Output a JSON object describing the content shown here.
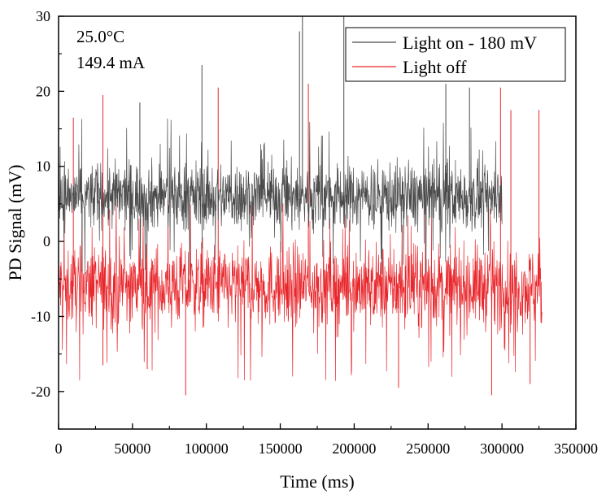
{
  "chart_data": {
    "type": "line",
    "title": "",
    "xlabel": "Time (ms)",
    "ylabel": "PD Signal (mV)",
    "xlim": [
      0,
      350000
    ],
    "ylim": [
      -25,
      30
    ],
    "xticks": [
      0,
      50000,
      100000,
      150000,
      200000,
      250000,
      300000,
      350000
    ],
    "xtick_labels": [
      "0",
      "50000",
      "100000",
      "150000",
      "200000",
      "250000",
      "300000",
      "350000"
    ],
    "yticks": [
      -20,
      -10,
      0,
      10,
      20,
      30
    ],
    "ytick_labels": [
      "-20",
      "-10",
      "0",
      "10",
      "20",
      "30"
    ],
    "grid": false,
    "legend_position": "top-right",
    "annotations": [
      "25.0°C",
      "149.4 mA"
    ],
    "series": [
      {
        "name": "Light on - 180 mV",
        "color": "#4a4a4a",
        "x_range": [
          0,
          300000
        ],
        "mean": 6,
        "noise_range": [
          1,
          11
        ],
        "spikes": [
          {
            "x": 55000,
            "y": 18.5
          },
          {
            "x": 97000,
            "y": 23.5
          },
          {
            "x": 163000,
            "y": 28
          },
          {
            "x": 165000,
            "y": 30
          },
          {
            "x": 193000,
            "y": 30
          },
          {
            "x": 262000,
            "y": 21
          },
          {
            "x": 278000,
            "y": 20.5
          }
        ]
      },
      {
        "name": "Light off",
        "color": "#e8272c",
        "x_range": [
          0,
          327000
        ],
        "mean": -6,
        "noise_range": [
          -12,
          0
        ],
        "spikes": [
          {
            "x": 10000,
            "y": 16.5
          },
          {
            "x": 30000,
            "y": 19.5
          },
          {
            "x": 108000,
            "y": 20.5
          },
          {
            "x": 169000,
            "y": 21
          },
          {
            "x": 299000,
            "y": 20.5
          },
          {
            "x": 306000,
            "y": 17.5
          },
          {
            "x": 325000,
            "y": 17.5
          },
          {
            "x": 30000,
            "y": -16.5
          },
          {
            "x": 60000,
            "y": -17
          },
          {
            "x": 86000,
            "y": -20.5
          },
          {
            "x": 230000,
            "y": -19.5
          },
          {
            "x": 293000,
            "y": -20.5
          },
          {
            "x": 319000,
            "y": -19
          }
        ]
      }
    ]
  }
}
